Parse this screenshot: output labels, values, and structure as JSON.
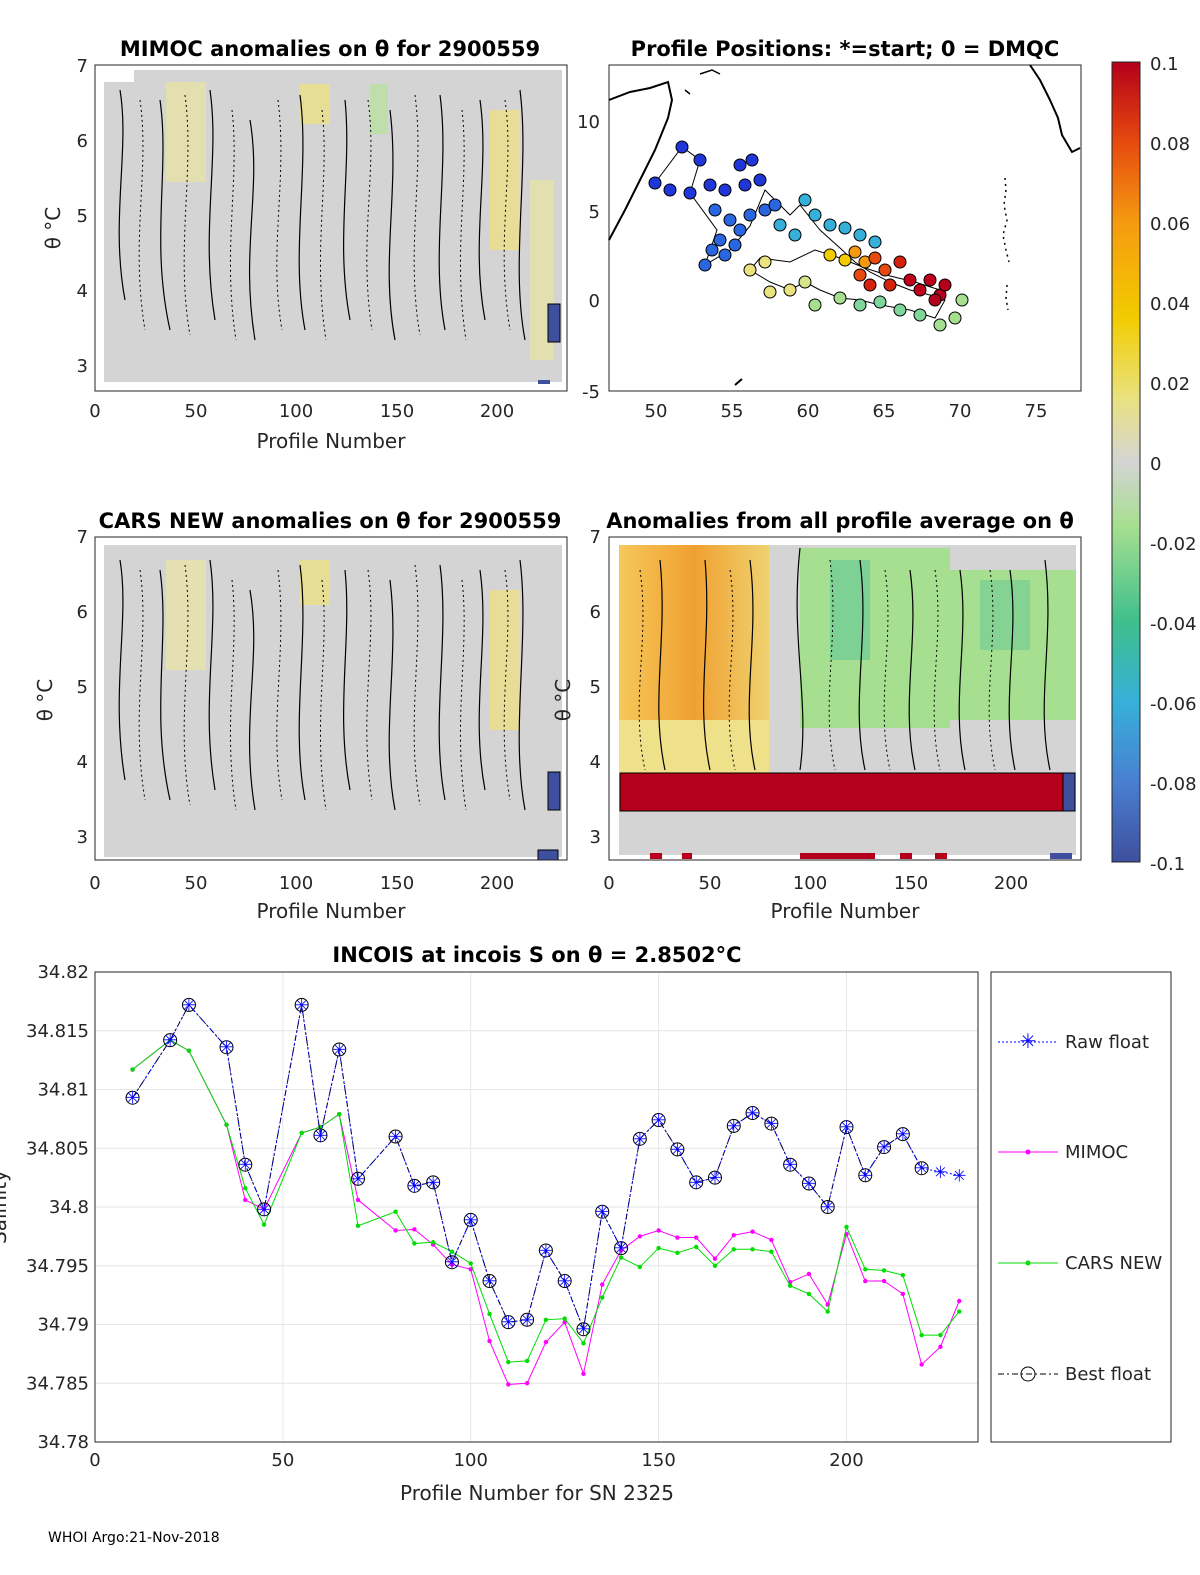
{
  "footer": "WHOI Argo:21-Nov-2018",
  "colorbar": {
    "ticks": [
      "0.1",
      "0.08",
      "0.06",
      "0.04",
      "0.02",
      "0",
      "-0.02",
      "-0.04",
      "-0.06",
      "-0.08",
      "-0.1"
    ],
    "colors": [
      "#3e4f9d",
      "#4a7fd1",
      "#36b0d9",
      "#3fbf8c",
      "#a6df90",
      "#d4d4d4",
      "#e9e27f",
      "#f2cc00",
      "#f59a10",
      "#e64a0f",
      "#b4001a"
    ]
  },
  "panels": {
    "mimoc": {
      "title": "MIMOC anomalies on θ  for 2900559",
      "xlabel": "Profile Number",
      "ylabel": "θ °C",
      "xticks": [
        "0",
        "50",
        "100",
        "150",
        "200"
      ],
      "yticks": [
        "3",
        "4",
        "5",
        "6",
        "7"
      ]
    },
    "positions": {
      "title": "Profile Positions: *=start; 0 = DMQC",
      "xticks": [
        "50",
        "55",
        "60",
        "65",
        "70",
        "75"
      ],
      "yticks": [
        "-5",
        "0",
        "5",
        "10"
      ]
    },
    "cars": {
      "title": "CARS NEW anomalies on θ for 2900559",
      "xlabel": "Profile Number",
      "ylabel": "θ °C",
      "xticks": [
        "0",
        "50",
        "100",
        "150",
        "200"
      ],
      "yticks": [
        "3",
        "4",
        "5",
        "6",
        "7"
      ]
    },
    "avg": {
      "title": "Anomalies from all profile average on θ",
      "xlabel": "Profile Number",
      "ylabel": "θ °C",
      "xticks": [
        "0",
        "50",
        "100",
        "150",
        "200"
      ],
      "yticks": [
        "3",
        "4",
        "5",
        "6",
        "7"
      ]
    }
  },
  "chart_data": {
    "type": "line",
    "title": "INCOIS at incois S on θ = 2.8502°C",
    "xlabel": "Profile Number for SN 2325",
    "ylabel": "Salinity",
    "xlim": [
      0,
      235
    ],
    "ylim": [
      34.78,
      34.82
    ],
    "xticks": [
      "0",
      "50",
      "100",
      "150",
      "200"
    ],
    "yticks": [
      "34.82",
      "34.815",
      "34.81",
      "34.805",
      "34.8",
      "34.795",
      "34.79",
      "34.785",
      "34.78"
    ],
    "x": [
      10,
      20,
      25,
      35,
      40,
      45,
      55,
      60,
      65,
      70,
      80,
      85,
      90,
      95,
      100,
      105,
      110,
      115,
      120,
      125,
      130,
      135,
      140,
      145,
      150,
      155,
      160,
      165,
      170,
      175,
      180,
      185,
      190,
      195,
      200,
      205,
      210,
      215,
      220,
      225,
      230
    ],
    "series": [
      {
        "name": "Raw float",
        "color": "#0000ff",
        "values": [
          34.8093,
          34.8142,
          34.8172,
          34.8136,
          34.8036,
          34.7998,
          34.8172,
          34.8061,
          34.8134,
          34.8024,
          34.806,
          34.8018,
          34.8021,
          34.7953,
          34.7989,
          34.7937,
          34.7902,
          34.7904,
          34.7963,
          34.7937,
          34.7896,
          34.7996,
          34.7965,
          34.8058,
          34.8074,
          34.8049,
          34.8021,
          34.8025,
          34.8069,
          34.808,
          34.8071,
          34.8036,
          34.802,
          34.8,
          34.8068,
          34.8027,
          34.8051,
          34.8062,
          34.8033,
          34.803,
          34.8027
        ]
      },
      {
        "name": "MIMOC",
        "color": "#ff00ff",
        "values": [
          34.8117,
          34.8142,
          34.8133,
          34.807,
          34.8006,
          34.7998,
          34.8063,
          34.8068,
          34.8079,
          34.8006,
          34.798,
          34.7981,
          34.7968,
          34.7951,
          34.7947,
          34.7886,
          34.7849,
          34.785,
          34.7885,
          34.7902,
          34.7858,
          34.7934,
          34.7963,
          34.7975,
          34.798,
          34.7974,
          34.7974,
          34.7956,
          34.7976,
          34.7979,
          34.7972,
          34.7936,
          34.7943,
          34.7917,
          34.7977,
          34.7937,
          34.7937,
          34.7926,
          34.7866,
          34.7881,
          34.792
        ]
      },
      {
        "name": "CARS NEW",
        "color": "#00dd00",
        "values": [
          34.8117,
          34.8142,
          34.8133,
          34.807,
          34.8016,
          34.7985,
          34.8063,
          34.8068,
          34.8079,
          34.7984,
          34.7996,
          34.7969,
          34.797,
          34.7962,
          34.7952,
          34.7909,
          34.7868,
          34.7869,
          34.7904,
          34.7905,
          34.7884,
          34.7923,
          34.7957,
          34.7949,
          34.7965,
          34.7961,
          34.7966,
          34.795,
          34.7964,
          34.7964,
          34.7962,
          34.7933,
          34.7926,
          34.7911,
          34.7983,
          34.7947,
          34.7946,
          34.7942,
          34.7891,
          34.7891,
          34.7911
        ]
      },
      {
        "name": "Best float",
        "color": "#000080",
        "values": [
          34.8093,
          34.8142,
          34.8172,
          34.8136,
          34.8036,
          34.7998,
          34.8172,
          34.8061,
          34.8134,
          34.8024,
          34.806,
          34.8018,
          34.8021,
          34.7953,
          34.7989,
          34.7937,
          34.7902,
          34.7904,
          34.7963,
          34.7937,
          34.7896,
          34.7996,
          34.7965,
          34.8058,
          34.8074,
          34.8049,
          34.8021,
          34.8025,
          34.8069,
          34.808,
          34.8071,
          34.8036,
          34.802,
          34.8,
          34.8068,
          34.8027,
          34.8051,
          34.8062,
          34.8033,
          null,
          null
        ]
      }
    ]
  }
}
